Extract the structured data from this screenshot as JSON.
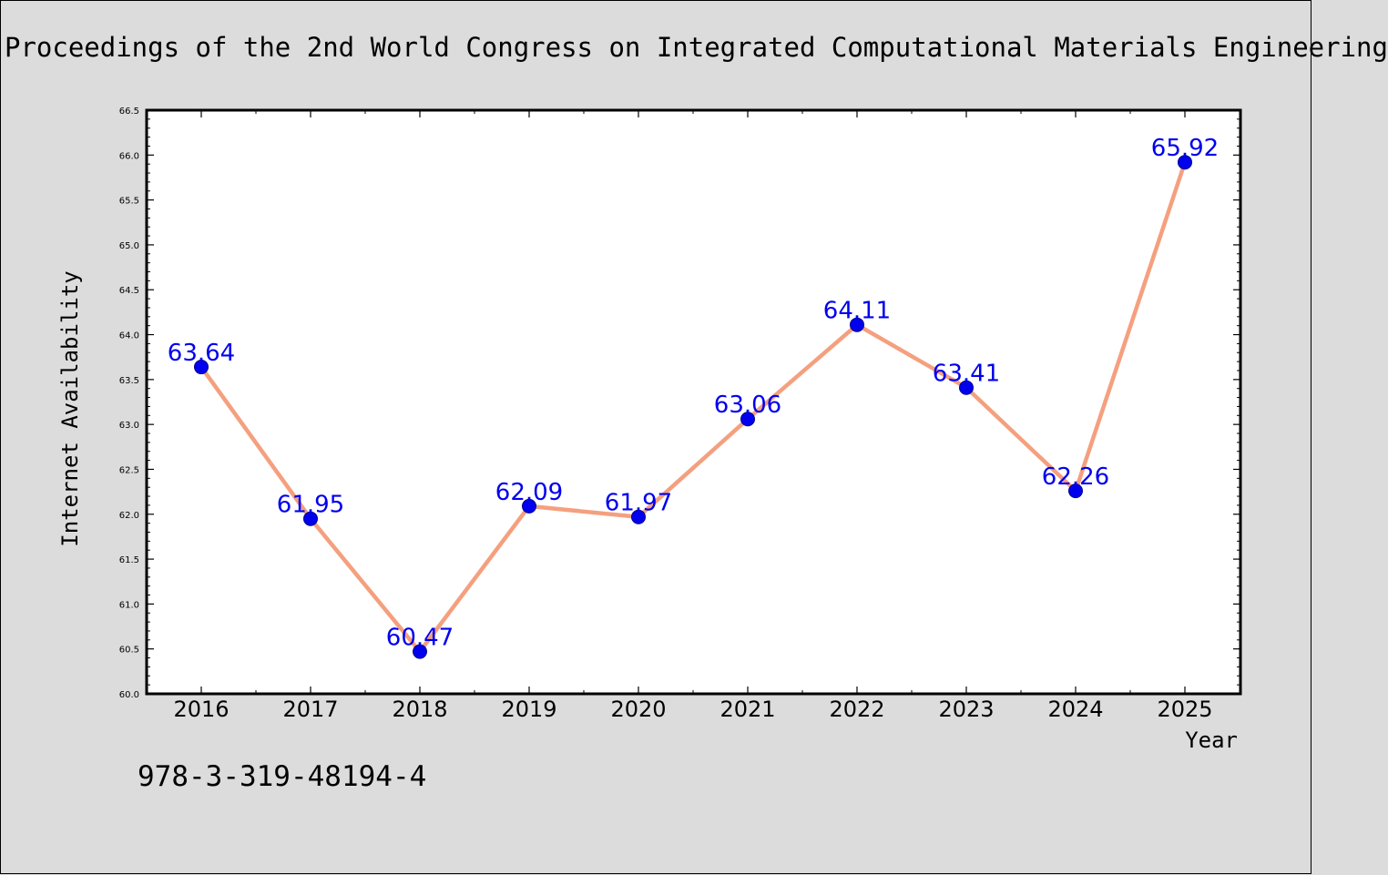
{
  "chart_data": {
    "type": "line",
    "title": "Proceedings of the 2nd World Congress on Integrated Computational Materials Engineering",
    "xlabel": "Year",
    "ylabel": "Internet Availability",
    "categories": [
      "2016",
      "2017",
      "2018",
      "2019",
      "2020",
      "2021",
      "2022",
      "2023",
      "2024",
      "2025"
    ],
    "values": [
      63.64,
      61.95,
      60.47,
      62.09,
      61.97,
      63.06,
      64.11,
      63.41,
      62.26,
      65.92
    ],
    "data_labels": [
      "63.64",
      "61.95",
      "60.47",
      "62.09",
      "61.97",
      "63.06",
      "64.11",
      "63.41",
      "62.26",
      "65.92"
    ],
    "ylim": [
      60.0,
      66.5
    ],
    "yticks": [
      "60.0",
      "60.5",
      "61.0",
      "61.5",
      "62.0",
      "62.5",
      "63.0",
      "63.5",
      "64.0",
      "64.5",
      "65.0",
      "65.5",
      "66.0",
      "66.5"
    ],
    "grid": false,
    "line_color": "#f4a07f",
    "marker_color": "#0000ee",
    "label_color": "#0000ee"
  },
  "footer_text": "978-3-319-48194-4"
}
